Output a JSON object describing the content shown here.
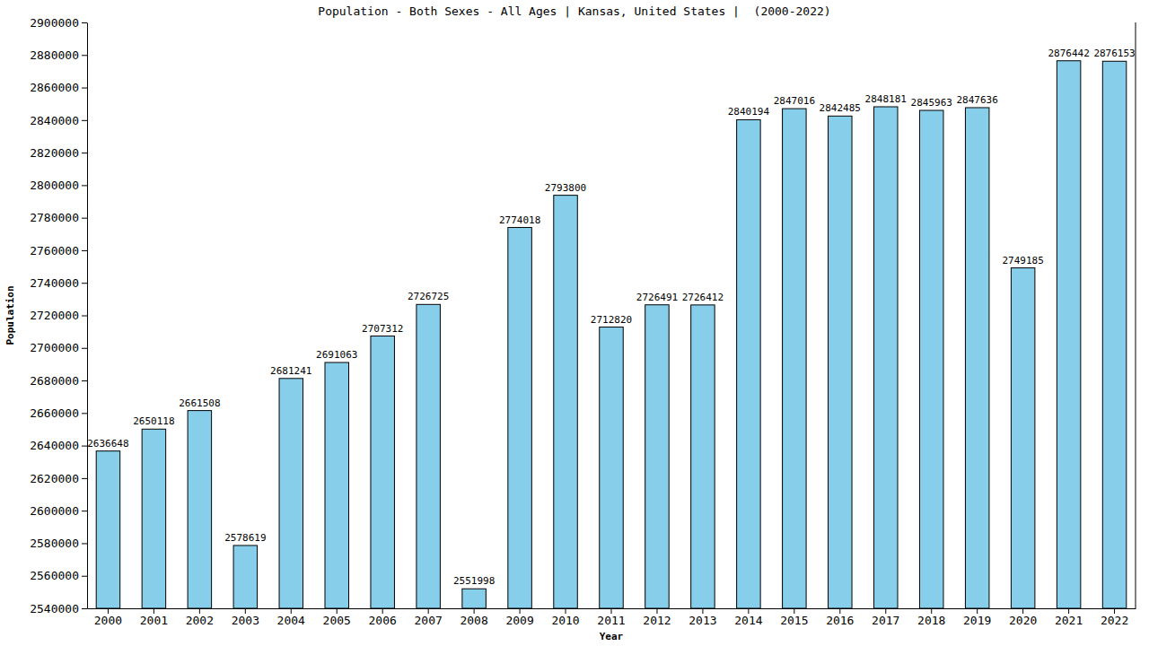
{
  "chart_data": {
    "type": "bar",
    "title": "Population - Both Sexes - All Ages | Kansas, United States |  (2000-2022)",
    "x_label": "Year",
    "y_label": "Population",
    "categories": [
      "2000",
      "2001",
      "2002",
      "2003",
      "2004",
      "2005",
      "2006",
      "2007",
      "2008",
      "2009",
      "2010",
      "2011",
      "2012",
      "2013",
      "2014",
      "2015",
      "2016",
      "2017",
      "2018",
      "2019",
      "2020",
      "2021",
      "2022"
    ],
    "values": [
      2636648,
      2650118,
      2661508,
      2578619,
      2681241,
      2691063,
      2707312,
      2726725,
      2551998,
      2774018,
      2793800,
      2712820,
      2726491,
      2726412,
      2840194,
      2847016,
      2842485,
      2848181,
      2845963,
      2847636,
      2749185,
      2876442,
      2876153
    ],
    "color": "#87ceeb",
    "ylim": [
      2540000,
      2900000
    ],
    "yticks": [
      2540000,
      2560000,
      2580000,
      2600000,
      2620000,
      2640000,
      2660000,
      2680000,
      2700000,
      2720000,
      2740000,
      2760000,
      2780000,
      2800000,
      2820000,
      2840000,
      2860000,
      2880000,
      2900000
    ],
    "grid": false,
    "data_labels": true
  }
}
